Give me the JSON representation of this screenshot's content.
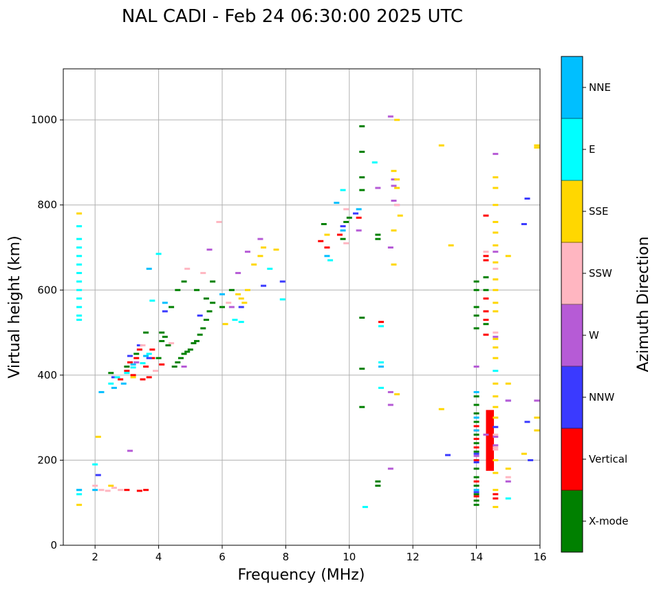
{
  "chart_data": {
    "type": "scatter",
    "title": "NAL CADI - Feb 24 06:30:00 2025 UTC",
    "xlabel": "Frequency (MHz)",
    "ylabel": "Virtual height (km)",
    "xlim": [
      1,
      16
    ],
    "ylim": [
      0,
      1120
    ],
    "xticks": [
      2,
      4,
      6,
      8,
      10,
      12,
      14,
      16
    ],
    "yticks": [
      0,
      200,
      400,
      600,
      800,
      1000
    ],
    "grid": true,
    "colorbar": {
      "label": "Azimuth Direction",
      "categories": [
        {
          "name": "X-mode",
          "color": "#008000"
        },
        {
          "name": "Vertical",
          "color": "#ff0000"
        },
        {
          "name": "NNW",
          "color": "#3a3aff"
        },
        {
          "name": "W",
          "color": "#b65bd6"
        },
        {
          "name": "SSW",
          "color": "#ffb6c1"
        },
        {
          "name": "SSE",
          "color": "#ffd700"
        },
        {
          "name": "E",
          "color": "#00ffff"
        },
        {
          "name": "NNE",
          "color": "#00bfff"
        }
      ]
    },
    "series": [
      {
        "name": "X-mode",
        "points": [
          [
            2.5,
            405
          ],
          [
            3.0,
            420
          ],
          [
            3.3,
            450
          ],
          [
            3.6,
            500
          ],
          [
            4.0,
            440
          ],
          [
            4.1,
            500
          ],
          [
            4.3,
            470
          ],
          [
            4.5,
            420
          ],
          [
            4.6,
            430
          ],
          [
            4.7,
            440
          ],
          [
            4.8,
            450
          ],
          [
            4.9,
            455
          ],
          [
            5.0,
            460
          ],
          [
            5.1,
            475
          ],
          [
            5.2,
            480
          ],
          [
            5.3,
            495
          ],
          [
            5.4,
            510
          ],
          [
            5.5,
            530
          ],
          [
            5.6,
            550
          ],
          [
            5.7,
            570
          ],
          [
            4.1,
            480
          ],
          [
            4.2,
            490
          ],
          [
            4.4,
            560
          ],
          [
            4.6,
            600
          ],
          [
            4.8,
            620
          ],
          [
            5.2,
            600
          ],
          [
            5.5,
            580
          ],
          [
            5.7,
            620
          ],
          [
            6.0,
            560
          ],
          [
            6.3,
            600
          ],
          [
            9.2,
            755
          ],
          [
            9.8,
            720
          ],
          [
            9.9,
            760
          ],
          [
            10.0,
            770
          ],
          [
            10.4,
            985
          ],
          [
            10.4,
            925
          ],
          [
            10.4,
            865
          ],
          [
            10.4,
            835
          ],
          [
            10.4,
            535
          ],
          [
            10.4,
            415
          ],
          [
            10.4,
            325
          ],
          [
            10.9,
            730
          ],
          [
            10.9,
            720
          ],
          [
            10.9,
            150
          ],
          [
            10.9,
            140
          ],
          [
            14.0,
            620
          ],
          [
            14.0,
            600
          ],
          [
            14.0,
            560
          ],
          [
            14.0,
            540
          ],
          [
            14.0,
            510
          ],
          [
            14.0,
            350
          ],
          [
            14.0,
            330
          ],
          [
            14.0,
            310
          ],
          [
            14.0,
            290
          ],
          [
            14.0,
            260
          ],
          [
            14.0,
            240
          ],
          [
            14.0,
            220
          ],
          [
            14.0,
            180
          ],
          [
            14.0,
            160
          ],
          [
            14.0,
            140
          ],
          [
            14.0,
            120
          ],
          [
            14.0,
            105
          ],
          [
            14.0,
            95
          ],
          [
            14.3,
            520
          ],
          [
            14.3,
            600
          ],
          [
            14.3,
            630
          ]
        ]
      },
      {
        "name": "Vertical",
        "points": [
          [
            2.8,
            390
          ],
          [
            3.0,
            410
          ],
          [
            3.1,
            430
          ],
          [
            3.2,
            400
          ],
          [
            3.3,
            440
          ],
          [
            3.4,
            460
          ],
          [
            3.5,
            390
          ],
          [
            3.6,
            420
          ],
          [
            3.7,
            395
          ],
          [
            3.8,
            460
          ],
          [
            3.8,
            440
          ],
          [
            3.0,
            130
          ],
          [
            3.4,
            128
          ],
          [
            3.6,
            130
          ],
          [
            4.1,
            425
          ],
          [
            9.1,
            715
          ],
          [
            9.3,
            700
          ],
          [
            9.7,
            730
          ],
          [
            10.3,
            770
          ],
          [
            11.0,
            525
          ],
          [
            14.0,
            280
          ],
          [
            14.0,
            270
          ],
          [
            14.0,
            250
          ],
          [
            14.0,
            230
          ],
          [
            14.0,
            200
          ],
          [
            14.0,
            150
          ],
          [
            14.0,
            115
          ],
          [
            14.3,
            775
          ],
          [
            14.3,
            680
          ],
          [
            14.3,
            670
          ],
          [
            14.3,
            580
          ],
          [
            14.3,
            550
          ],
          [
            14.3,
            530
          ],
          [
            14.3,
            495
          ],
          [
            14.6,
            120
          ],
          [
            14.6,
            110
          ]
        ]
      },
      {
        "name": "NNW",
        "points": [
          [
            2.1,
            165
          ],
          [
            2.6,
            395
          ],
          [
            3.1,
            445
          ],
          [
            3.4,
            470
          ],
          [
            3.7,
            440
          ],
          [
            4.2,
            550
          ],
          [
            5.3,
            540
          ],
          [
            6.6,
            560
          ],
          [
            7.3,
            610
          ],
          [
            7.9,
            620
          ],
          [
            9.8,
            750
          ],
          [
            10.2,
            780
          ],
          [
            14.0,
            215
          ],
          [
            14.0,
            195
          ],
          [
            14.0,
            125
          ],
          [
            14.6,
            278
          ],
          [
            15.0,
            340
          ],
          [
            15.5,
            755
          ],
          [
            15.6,
            815
          ],
          [
            15.6,
            290
          ],
          [
            15.7,
            200
          ],
          [
            13.1,
            212
          ]
        ]
      },
      {
        "name": "W",
        "points": [
          [
            3.1,
            222
          ],
          [
            3.3,
            430
          ],
          [
            4.8,
            420
          ],
          [
            5.6,
            695
          ],
          [
            6.3,
            560
          ],
          [
            6.5,
            640
          ],
          [
            6.8,
            690
          ],
          [
            7.2,
            720
          ],
          [
            10.3,
            740
          ],
          [
            10.9,
            840
          ],
          [
            11.3,
            1008
          ],
          [
            11.3,
            700
          ],
          [
            11.3,
            360
          ],
          [
            11.3,
            330
          ],
          [
            11.3,
            180
          ],
          [
            11.4,
            860
          ],
          [
            11.4,
            845
          ],
          [
            11.4,
            810
          ],
          [
            11.5,
            800
          ],
          [
            14.0,
            420
          ],
          [
            14.0,
            210
          ],
          [
            14.6,
            920
          ],
          [
            14.6,
            690
          ],
          [
            14.6,
            490
          ],
          [
            14.6,
            255
          ],
          [
            14.6,
            235
          ],
          [
            15.0,
            150
          ],
          [
            15.0,
            340
          ],
          [
            15.9,
            340
          ],
          [
            14.3,
            260
          ]
        ]
      },
      {
        "name": "SSW",
        "points": [
          [
            2.0,
            140
          ],
          [
            2.2,
            130
          ],
          [
            2.4,
            128
          ],
          [
            2.6,
            135
          ],
          [
            2.8,
            130
          ],
          [
            3.5,
            470
          ],
          [
            3.9,
            410
          ],
          [
            4.4,
            475
          ],
          [
            4.9,
            650
          ],
          [
            5.4,
            640
          ],
          [
            5.9,
            760
          ],
          [
            6.2,
            570
          ],
          [
            9.9,
            710
          ],
          [
            9.9,
            790
          ],
          [
            11.5,
            800
          ],
          [
            14.3,
            690
          ],
          [
            14.6,
            500
          ],
          [
            14.6,
            650
          ],
          [
            14.6,
            260
          ],
          [
            14.6,
            230
          ],
          [
            15.0,
            160
          ],
          [
            14.6,
            225
          ]
        ]
      },
      {
        "name": "SSE",
        "points": [
          [
            1.5,
            780
          ],
          [
            1.5,
            95
          ],
          [
            2.1,
            255
          ],
          [
            2.5,
            140
          ],
          [
            3.2,
            395
          ],
          [
            6.1,
            520
          ],
          [
            6.5,
            590
          ],
          [
            6.6,
            580
          ],
          [
            6.7,
            570
          ],
          [
            6.8,
            600
          ],
          [
            7.0,
            660
          ],
          [
            7.2,
            680
          ],
          [
            7.3,
            700
          ],
          [
            7.7,
            695
          ],
          [
            9.3,
            730
          ],
          [
            11.4,
            880
          ],
          [
            11.5,
            860
          ],
          [
            11.5,
            840
          ],
          [
            11.5,
            1000
          ],
          [
            11.6,
            775
          ],
          [
            11.4,
            740
          ],
          [
            11.4,
            660
          ],
          [
            11.5,
            355
          ],
          [
            12.9,
            940
          ],
          [
            13.2,
            705
          ],
          [
            12.9,
            320
          ],
          [
            14.6,
            865
          ],
          [
            14.6,
            840
          ],
          [
            14.6,
            800
          ],
          [
            14.6,
            760
          ],
          [
            14.6,
            735
          ],
          [
            14.6,
            705
          ],
          [
            14.6,
            665
          ],
          [
            14.6,
            625
          ],
          [
            14.6,
            600
          ],
          [
            14.6,
            570
          ],
          [
            14.6,
            550
          ],
          [
            14.6,
            485
          ],
          [
            14.6,
            465
          ],
          [
            14.6,
            440
          ],
          [
            14.6,
            380
          ],
          [
            14.6,
            350
          ],
          [
            14.6,
            325
          ],
          [
            14.6,
            300
          ],
          [
            14.6,
            200
          ],
          [
            14.6,
            170
          ],
          [
            14.6,
            130
          ],
          [
            14.6,
            90
          ],
          [
            15.0,
            680
          ],
          [
            15.0,
            380
          ],
          [
            15.0,
            180
          ],
          [
            15.5,
            215
          ],
          [
            15.9,
            935
          ],
          [
            15.9,
            940
          ],
          [
            15.9,
            300
          ],
          [
            15.9,
            270
          ]
        ]
      },
      {
        "name": "E",
        "points": [
          [
            1.5,
            700
          ],
          [
            1.5,
            680
          ],
          [
            1.5,
            660
          ],
          [
            1.5,
            640
          ],
          [
            1.5,
            620
          ],
          [
            1.5,
            600
          ],
          [
            1.5,
            580
          ],
          [
            1.5,
            560
          ],
          [
            1.5,
            540
          ],
          [
            1.5,
            530
          ],
          [
            1.5,
            750
          ],
          [
            1.5,
            720
          ],
          [
            1.5,
            130
          ],
          [
            1.5,
            120
          ],
          [
            2.0,
            190
          ],
          [
            2.5,
            380
          ],
          [
            2.7,
            395
          ],
          [
            3.0,
            405
          ],
          [
            3.2,
            418
          ],
          [
            3.5,
            428
          ],
          [
            3.7,
            450
          ],
          [
            3.8,
            575
          ],
          [
            4.0,
            685
          ],
          [
            6.4,
            530
          ],
          [
            6.6,
            525
          ],
          [
            7.5,
            650
          ],
          [
            7.9,
            578
          ],
          [
            9.4,
            670
          ],
          [
            9.8,
            835
          ],
          [
            10.5,
            90
          ],
          [
            10.8,
            900
          ],
          [
            11.0,
            430
          ],
          [
            11.0,
            370
          ],
          [
            11.0,
            515
          ],
          [
            14.6,
            410
          ],
          [
            15.0,
            110
          ]
        ]
      },
      {
        "name": "NNE",
        "points": [
          [
            1.5,
            130
          ],
          [
            2.0,
            130
          ],
          [
            2.2,
            360
          ],
          [
            2.6,
            370
          ],
          [
            2.9,
            380
          ],
          [
            3.2,
            425
          ],
          [
            3.6,
            445
          ],
          [
            3.7,
            650
          ],
          [
            4.2,
            570
          ],
          [
            6.0,
            590
          ],
          [
            9.3,
            680
          ],
          [
            9.6,
            805
          ],
          [
            9.8,
            740
          ],
          [
            10.3,
            790
          ],
          [
            11.0,
            420
          ],
          [
            14.0,
            360
          ],
          [
            14.0,
            300
          ],
          [
            14.0,
            270
          ],
          [
            14.0,
            130
          ]
        ]
      }
    ],
    "blocks": [
      {
        "series": "Vertical",
        "x": [
          14.3,
          14.55
        ],
        "y": [
          175,
          318
        ]
      }
    ]
  }
}
